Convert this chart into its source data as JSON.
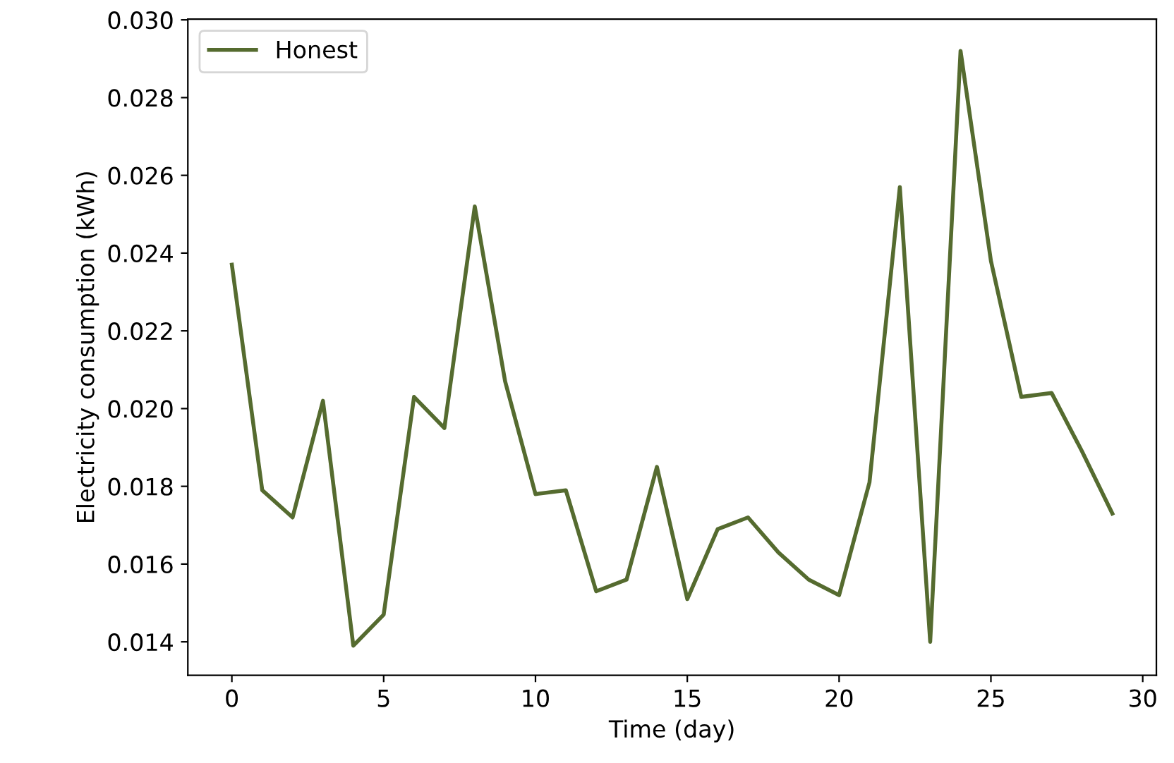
{
  "chart_data": {
    "type": "line",
    "xlabel": "Time (day)",
    "ylabel": "Electricity consumption (kWh)",
    "x": [
      0,
      1,
      2,
      3,
      4,
      5,
      6,
      7,
      8,
      9,
      10,
      11,
      12,
      13,
      14,
      15,
      16,
      17,
      18,
      19,
      20,
      21,
      22,
      23,
      24,
      25,
      26,
      27,
      28,
      29
    ],
    "series": [
      {
        "name": "Honest",
        "color": "#556b2f",
        "values": [
          0.0237,
          0.0179,
          0.0172,
          0.0202,
          0.0139,
          0.0147,
          0.0203,
          0.0195,
          0.0252,
          0.0207,
          0.0178,
          0.0179,
          0.0153,
          0.0156,
          0.0185,
          0.0151,
          0.0169,
          0.0172,
          0.0163,
          0.0156,
          0.0152,
          0.0181,
          0.0257,
          0.014,
          0.0292,
          0.0238,
          0.0203,
          0.0204,
          0.0189,
          0.0173
        ]
      }
    ],
    "xlim": [
      -1.45,
      30.45
    ],
    "ylim": [
      0.01314,
      0.03002
    ],
    "xticks": [
      0,
      5,
      10,
      15,
      20,
      25,
      30
    ],
    "yticks": [
      {
        "value": 0.014,
        "label": "0.014"
      },
      {
        "value": 0.016,
        "label": "0.016"
      },
      {
        "value": 0.018,
        "label": "0.018"
      },
      {
        "value": 0.02,
        "label": "0.020"
      },
      {
        "value": 0.022,
        "label": "0.022"
      },
      {
        "value": 0.024,
        "label": "0.024"
      },
      {
        "value": 0.026,
        "label": "0.026"
      },
      {
        "value": 0.028,
        "label": "0.028"
      },
      {
        "value": 0.03,
        "label": "0.030"
      }
    ],
    "legend": "top left",
    "grid": false,
    "marker": "none",
    "line_style": "solid"
  }
}
